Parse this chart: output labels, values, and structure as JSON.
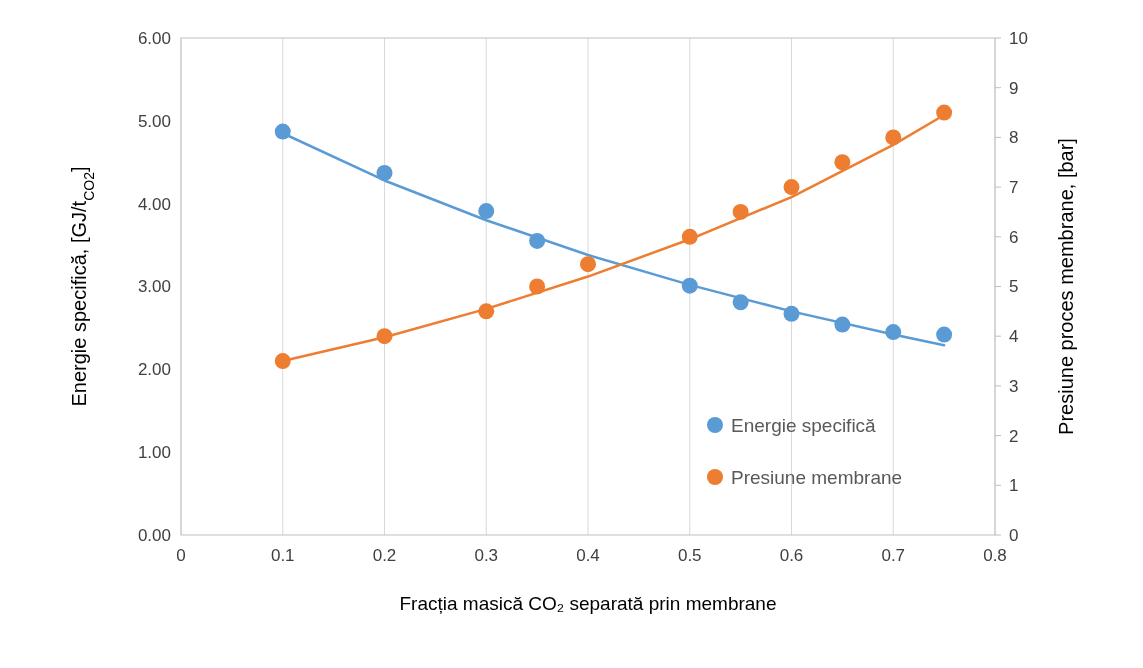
{
  "chart_data": {
    "type": "scatter",
    "xlabel": "Fracția masică CO₂ separată prin membrane",
    "ylabel": "Energie specifică, [GJ/t$_{CO2}$]",
    "y2label": "Presiune proces membrane, [bar]",
    "xlim": [
      0,
      0.8
    ],
    "xticks": [
      0,
      0.1,
      0.2,
      0.3,
      0.4,
      0.5,
      0.6,
      0.7,
      0.8
    ],
    "ylim": [
      0,
      6
    ],
    "yticks": [
      {
        "value": 0,
        "label": "0.00"
      },
      {
        "value": 1,
        "label": "1.00"
      },
      {
        "value": 2,
        "label": "2.00"
      },
      {
        "value": 3,
        "label": "3.00"
      },
      {
        "value": 4,
        "label": "4.00"
      },
      {
        "value": 5,
        "label": "5.00"
      },
      {
        "value": 6,
        "label": "6.00"
      }
    ],
    "y2lim": [
      0,
      10
    ],
    "y2ticks": [
      0,
      1,
      2,
      3,
      4,
      5,
      6,
      7,
      8,
      9,
      10
    ],
    "grid": "x",
    "legend": "bottom right",
    "x": [
      0.1,
      0.2,
      0.3,
      0.35,
      0.4,
      0.5,
      0.55,
      0.6,
      0.65,
      0.7,
      0.75
    ],
    "series": [
      {
        "type": "line",
        "marker": "none",
        "color": "#5b9bd5",
        "x": [
          0.1,
          0.2,
          0.3,
          0.4,
          0.5,
          0.6,
          0.7,
          0.75
        ],
        "values": [
          4.85,
          4.28,
          3.8,
          3.38,
          3.02,
          2.7,
          2.42,
          2.29
        ]
      },
      {
        "type": "line",
        "marker": "none",
        "axis": "y2",
        "color": "#ed7d31",
        "x": [
          0.1,
          0.2,
          0.3,
          0.4,
          0.5,
          0.6,
          0.7,
          0.75
        ],
        "values": [
          3.5,
          3.98,
          4.55,
          5.2,
          5.95,
          6.8,
          7.85,
          8.45
        ]
      },
      {
        "name": "Energie specifică",
        "type": "scatter",
        "marker": "circle",
        "color": "#5b9bd5",
        "values": [
          4.87,
          4.37,
          3.91,
          3.55,
          null,
          3.01,
          2.81,
          2.67,
          2.54,
          2.45,
          2.42
        ]
      },
      {
        "name": "Presiune membrane",
        "type": "scatter",
        "marker": "circle",
        "axis": "y2",
        "color": "#ed7d31",
        "values": [
          3.5,
          4.0,
          4.5,
          5.0,
          5.45,
          6.0,
          6.5,
          7.0,
          7.5,
          8.0,
          8.5
        ]
      }
    ]
  }
}
